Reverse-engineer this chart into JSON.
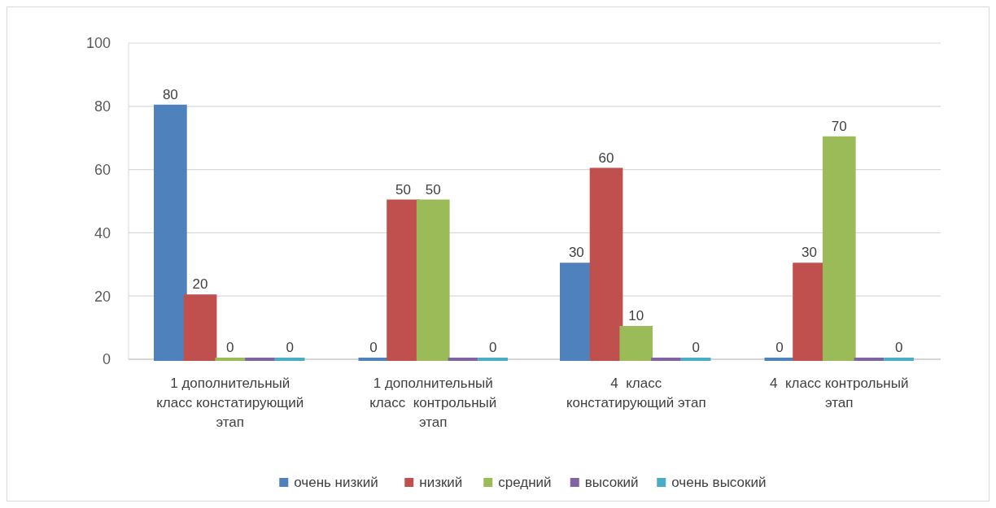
{
  "chart_data": {
    "type": "bar",
    "categories": [
      "1 дополнительный класс констатирующий этап",
      "1 дополнительный класс  контрольный этап",
      "4  класс констатирующий этап",
      "4  класс контрольный этап"
    ],
    "series": [
      {
        "name": "очень низкий",
        "color": "#4f81bd",
        "values": [
          80,
          0,
          30,
          0
        ],
        "value_labels": [
          "80",
          "0",
          "30",
          "0"
        ]
      },
      {
        "name": "низкий",
        "color": "#c0504d",
        "values": [
          20,
          50,
          60,
          30
        ],
        "value_labels": [
          "20",
          "50",
          "60",
          "30"
        ]
      },
      {
        "name": "средний",
        "color": "#9bbb59",
        "values": [
          0,
          50,
          10,
          70
        ],
        "value_labels": [
          "0",
          "50",
          "10",
          "70"
        ]
      },
      {
        "name": "высокий",
        "color": "#8064a2",
        "values": [
          0,
          0,
          0,
          0
        ]
      },
      {
        "name": "очень высокий",
        "color": "#4bacc6",
        "values": [
          0,
          0,
          0,
          0
        ],
        "value_labels": [
          "0",
          "0",
          "0",
          "0"
        ]
      }
    ],
    "ylim": [
      0,
      100
    ],
    "yticks": [
      0,
      20,
      40,
      60,
      80,
      100
    ],
    "grid": "y",
    "legend": "bottom"
  }
}
